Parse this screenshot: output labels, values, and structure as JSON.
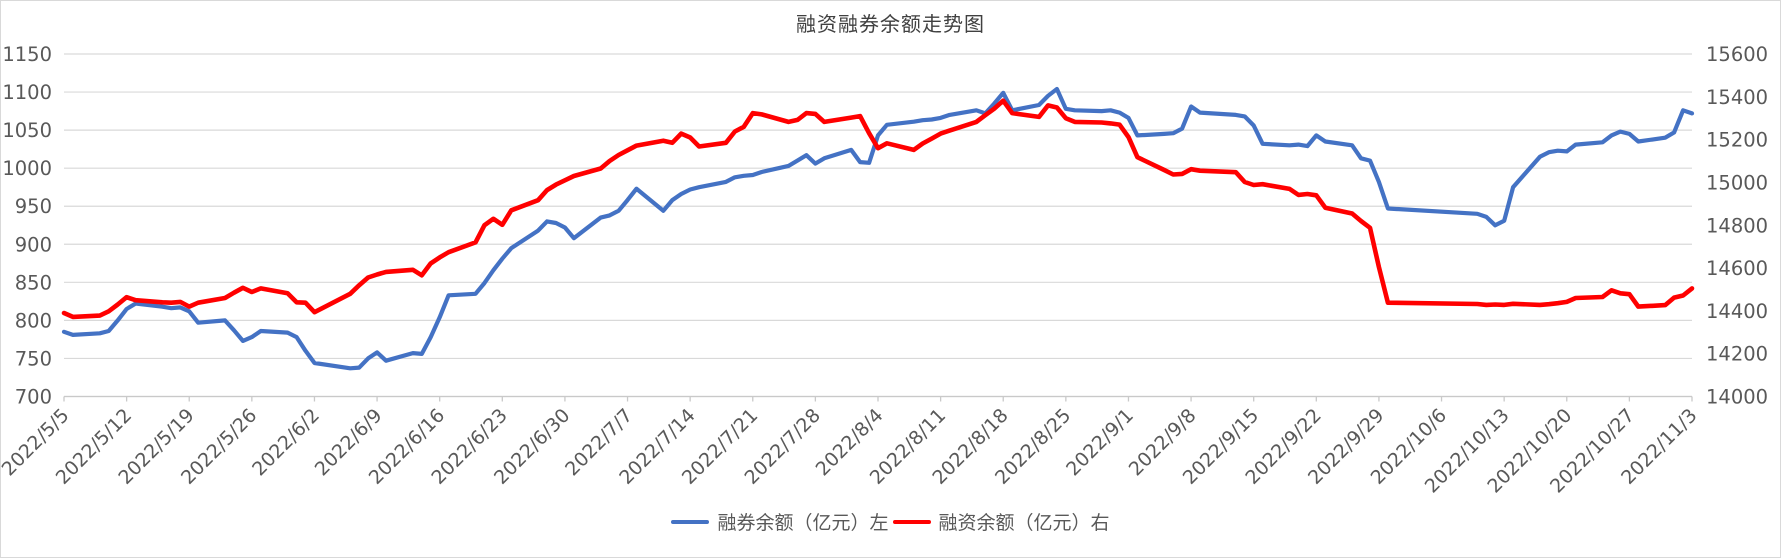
{
  "chart_data": {
    "type": "line",
    "title": "融资融券余额走势图",
    "legend_position": "bottom",
    "grid": "horizontal",
    "colors": {
      "series_left": "#4472C4",
      "series_right": "#FF0000",
      "gridline": "#D9D9D9",
      "axis_text": "#595959",
      "title_text": "#404040"
    },
    "left_axis": {
      "min": 700,
      "max": 1150,
      "step": 50,
      "ticks": [
        700,
        750,
        800,
        850,
        900,
        950,
        1000,
        1050,
        1100,
        1150
      ]
    },
    "right_axis": {
      "min": 14000,
      "max": 15600,
      "step": 200,
      "ticks": [
        14000,
        14200,
        14400,
        14600,
        14800,
        15000,
        15200,
        15400,
        15600
      ]
    },
    "x_tick_labels": [
      "2022/5/5",
      "2022/5/12",
      "2022/5/19",
      "2022/5/26",
      "2022/6/2",
      "2022/6/9",
      "2022/6/16",
      "2022/6/23",
      "2022/6/30",
      "2022/7/7",
      "2022/7/14",
      "2022/7/21",
      "2022/7/28",
      "2022/8/4",
      "2022/8/11",
      "2022/8/18",
      "2022/8/25",
      "2022/9/1",
      "2022/9/8",
      "2022/9/15",
      "2022/9/22",
      "2022/9/29",
      "2022/10/6",
      "2022/10/13",
      "2022/10/20",
      "2022/10/27",
      "2022/11/3"
    ],
    "x": [
      "2022/5/5",
      "2022/5/6",
      "2022/5/9",
      "2022/5/10",
      "2022/5/11",
      "2022/5/12",
      "2022/5/13",
      "2022/5/16",
      "2022/5/17",
      "2022/5/18",
      "2022/5/19",
      "2022/5/20",
      "2022/5/23",
      "2022/5/24",
      "2022/5/25",
      "2022/5/26",
      "2022/5/27",
      "2022/5/30",
      "2022/5/31",
      "2022/6/1",
      "2022/6/2",
      "2022/6/6",
      "2022/6/7",
      "2022/6/8",
      "2022/6/9",
      "2022/6/10",
      "2022/6/13",
      "2022/6/14",
      "2022/6/15",
      "2022/6/16",
      "2022/6/17",
      "2022/6/20",
      "2022/6/21",
      "2022/6/22",
      "2022/6/23",
      "2022/6/24",
      "2022/6/27",
      "2022/6/28",
      "2022/6/29",
      "2022/6/30",
      "2022/7/1",
      "2022/7/4",
      "2022/7/5",
      "2022/7/6",
      "2022/7/7",
      "2022/7/8",
      "2022/7/11",
      "2022/7/12",
      "2022/7/13",
      "2022/7/14",
      "2022/7/15",
      "2022/7/18",
      "2022/7/19",
      "2022/7/20",
      "2022/7/21",
      "2022/7/22",
      "2022/7/25",
      "2022/7/26",
      "2022/7/27",
      "2022/7/28",
      "2022/7/29",
      "2022/8/1",
      "2022/8/2",
      "2022/8/3",
      "2022/8/4",
      "2022/8/5",
      "2022/8/8",
      "2022/8/9",
      "2022/8/10",
      "2022/8/11",
      "2022/8/12",
      "2022/8/15",
      "2022/8/16",
      "2022/8/17",
      "2022/8/18",
      "2022/8/19",
      "2022/8/22",
      "2022/8/23",
      "2022/8/24",
      "2022/8/25",
      "2022/8/26",
      "2022/8/29",
      "2022/8/30",
      "2022/8/31",
      "2022/9/1",
      "2022/9/2",
      "2022/9/5",
      "2022/9/6",
      "2022/9/7",
      "2022/9/8",
      "2022/9/9",
      "2022/9/13",
      "2022/9/14",
      "2022/9/15",
      "2022/9/16",
      "2022/9/19",
      "2022/9/20",
      "2022/9/21",
      "2022/9/22",
      "2022/9/23",
      "2022/9/26",
      "2022/9/27",
      "2022/9/28",
      "2022/9/29",
      "2022/9/30",
      "2022/10/10",
      "2022/10/11",
      "2022/10/12",
      "2022/10/13",
      "2022/10/14",
      "2022/10/17",
      "2022/10/18",
      "2022/10/19",
      "2022/10/20",
      "2022/10/21",
      "2022/10/24",
      "2022/10/25",
      "2022/10/26",
      "2022/10/27",
      "2022/10/28",
      "2022/10/31",
      "2022/11/1",
      "2022/11/2",
      "2022/11/3"
    ],
    "series": [
      {
        "name": "融券余额（亿元）左",
        "axis": "left",
        "color": "#4472C4",
        "values": [
          785,
          781,
          783,
          786,
          800,
          815,
          822,
          818,
          816,
          817,
          812,
          797,
          800,
          787,
          773,
          778,
          786,
          784,
          778,
          760,
          744,
          737,
          738,
          750,
          758,
          747,
          757,
          756,
          778,
          804,
          833,
          835,
          849,
          866,
          881,
          895,
          918,
          930,
          928,
          922,
          908,
          935,
          938,
          944,
          958,
          973,
          944,
          958,
          966,
          972,
          975,
          982,
          988,
          990,
          991,
          995,
          1003,
          1010,
          1017,
          1006,
          1013,
          1024,
          1008,
          1007,
          1043,
          1057,
          1061,
          1063,
          1064,
          1066,
          1070,
          1076,
          1072,
          1085,
          1099,
          1076,
          1083,
          1095,
          1104,
          1078,
          1076,
          1075,
          1076,
          1073,
          1066,
          1043,
          1045,
          1046,
          1052,
          1081,
          1073,
          1070,
          1068,
          1056,
          1032,
          1030,
          1031,
          1029,
          1043,
          1035,
          1030,
          1013,
          1010,
          982,
          947,
          940,
          936,
          925,
          931,
          975,
          1015,
          1021,
          1023,
          1022,
          1031,
          1034,
          1043,
          1048,
          1045,
          1035,
          1040,
          1047,
          1076,
          1072
        ]
      },
      {
        "name": "融资余额（亿元）右",
        "axis": "right",
        "color": "#FF0000",
        "values": [
          14390,
          14372,
          14378,
          14398,
          14430,
          14464,
          14450,
          14440,
          14438,
          14442,
          14420,
          14438,
          14460,
          14485,
          14508,
          14488,
          14505,
          14482,
          14440,
          14438,
          14394,
          14480,
          14520,
          14556,
          14570,
          14582,
          14592,
          14566,
          14622,
          14650,
          14674,
          14720,
          14800,
          14830,
          14802,
          14870,
          14917,
          14964,
          14990,
          15010,
          15030,
          15065,
          15100,
          15128,
          15150,
          15172,
          15195,
          15185,
          15228,
          15210,
          15168,
          15185,
          15238,
          15260,
          15324,
          15318,
          15283,
          15292,
          15324,
          15320,
          15283,
          15303,
          15310,
          15230,
          15160,
          15183,
          15152,
          15182,
          15205,
          15228,
          15242,
          15283,
          15314,
          15345,
          15382,
          15324,
          15306,
          15360,
          15350,
          15300,
          15283,
          15280,
          15276,
          15270,
          15212,
          15118,
          15058,
          15037,
          15040,
          15062,
          15055,
          15048,
          15002,
          14988,
          14992,
          14970,
          14942,
          14946,
          14940,
          14882,
          14855,
          14820,
          14788,
          14605,
          14438,
          14432,
          14428,
          14430,
          14428,
          14433,
          14428,
          14431,
          14436,
          14442,
          14460,
          14465,
          14496,
          14482,
          14478,
          14420,
          14427,
          14462,
          14472,
          14505
        ]
      }
    ]
  }
}
